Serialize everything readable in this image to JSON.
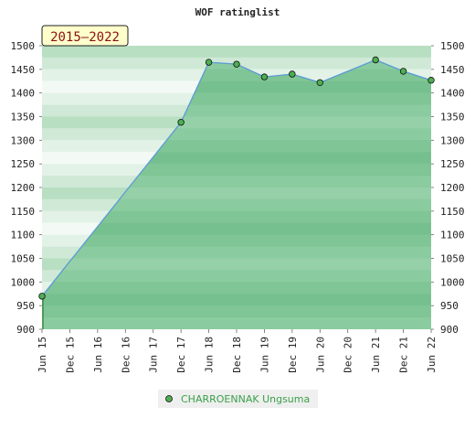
{
  "chart_data": {
    "type": "area",
    "title": "WOF ratinglist",
    "period_label": "2015–2022",
    "x_labels": [
      "Jun 15",
      "Dec 15",
      "Jun 16",
      "Dec 16",
      "Jun 17",
      "Dec 17",
      "Jun 18",
      "Dec 18",
      "Jun 19",
      "Dec 19",
      "Jun 20",
      "Dec 20",
      "Jun 21",
      "Dec 21",
      "Jun 22"
    ],
    "y_ticks": [
      900,
      950,
      1000,
      1050,
      1100,
      1150,
      1200,
      1250,
      1300,
      1350,
      1400,
      1450,
      1500
    ],
    "ylim": [
      900,
      1500
    ],
    "series": [
      {
        "name": "CHARROENNAK Ungsuma",
        "points": [
          {
            "x": "Jun 15",
            "y": 970
          },
          {
            "x": "Dec 17",
            "y": 1338
          },
          {
            "x": "Jun 18",
            "y": 1465
          },
          {
            "x": "Dec 18",
            "y": 1461
          },
          {
            "x": "Jun 19",
            "y": 1434
          },
          {
            "x": "Dec 19",
            "y": 1440
          },
          {
            "x": "Jun 20",
            "y": 1422
          },
          {
            "x": "Jun 21",
            "y": 1470
          },
          {
            "x": "Dec 21",
            "y": 1446
          },
          {
            "x": "Jun 22",
            "y": 1427
          }
        ]
      }
    ],
    "legend_placement": "bottom-center",
    "grid": true
  },
  "colors": {
    "area_fill": "#7cc294",
    "line": "#5b9bd5",
    "marker": "#4caf50",
    "legend_text": "#3aa04a",
    "badge_bg": "#ffffcc"
  }
}
